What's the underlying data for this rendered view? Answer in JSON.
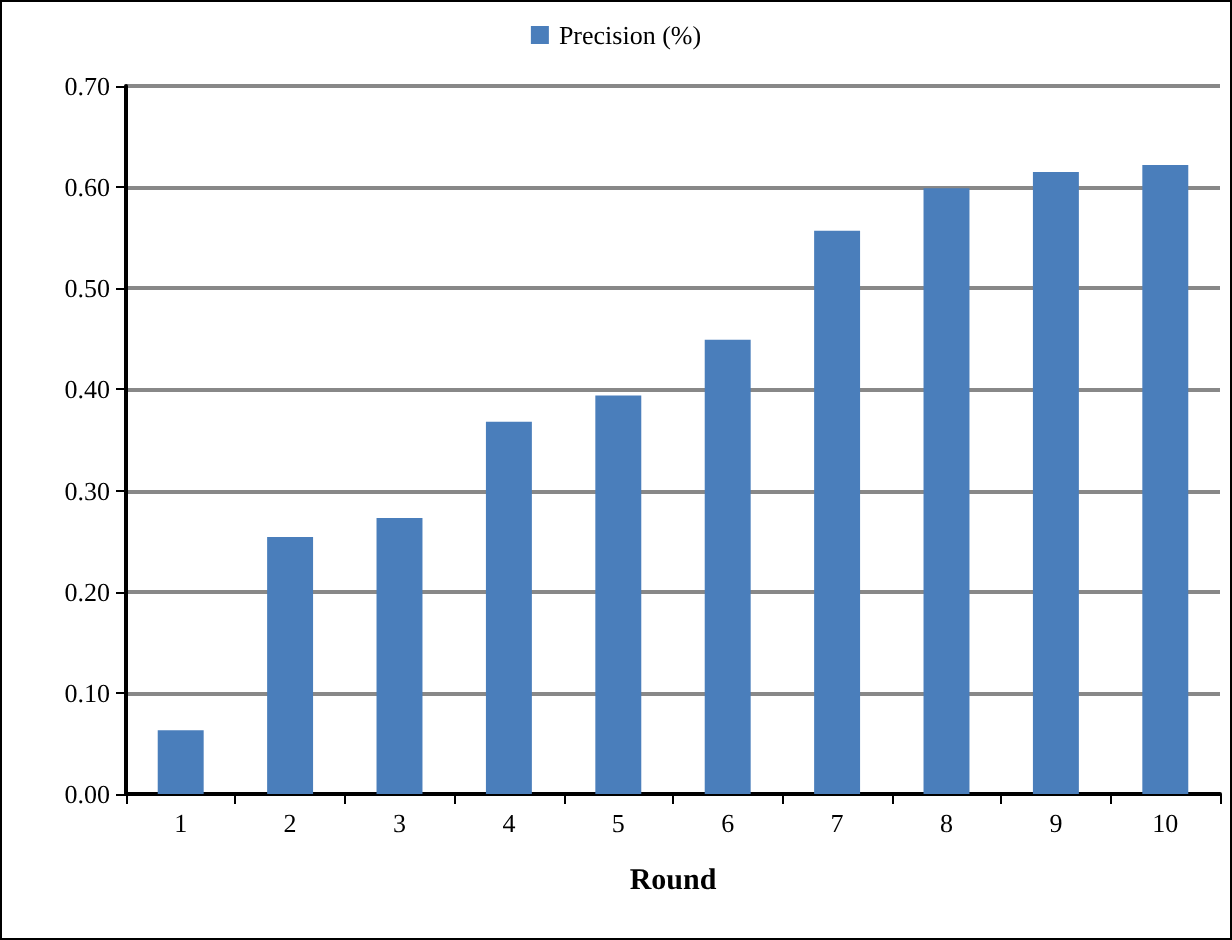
{
  "chart_data": {
    "type": "bar",
    "xlabel": "Round",
    "categories": [
      "1",
      "2",
      "3",
      "4",
      "5",
      "6",
      "7",
      "8",
      "9",
      "10"
    ],
    "series": [
      {
        "name": "Precision (%)",
        "color": "#4a7ebb",
        "values": [
          0.063,
          0.254,
          0.273,
          0.368,
          0.394,
          0.449,
          0.557,
          0.599,
          0.615,
          0.622
        ]
      }
    ],
    "ylim": [
      0,
      0.7
    ],
    "yticks": [
      {
        "value": 0,
        "label": "0.00"
      },
      {
        "value": 0.1,
        "label": "0.10"
      },
      {
        "value": 0.2,
        "label": "0.20"
      },
      {
        "value": 0.3,
        "label": "0.30"
      },
      {
        "value": 0.4,
        "label": "0.40"
      },
      {
        "value": 0.5,
        "label": "0.50"
      },
      {
        "value": 0.6,
        "label": "0.60"
      },
      {
        "value": 0.7,
        "label": "0.70"
      }
    ],
    "grid": "y",
    "legend": "top"
  }
}
